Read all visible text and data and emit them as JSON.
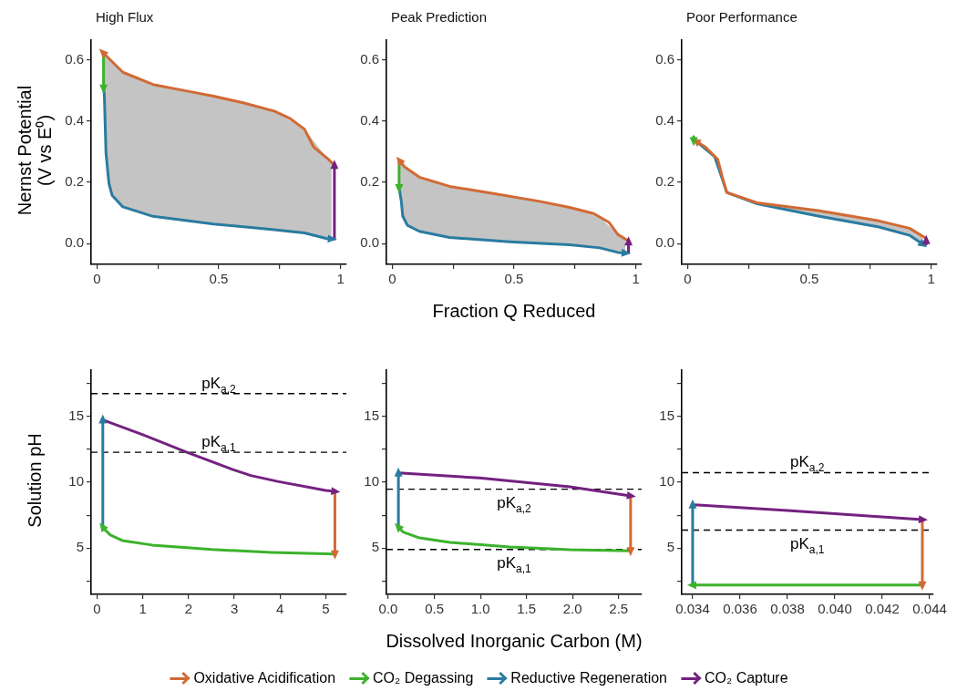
{
  "chart_data": [
    {
      "type": "line",
      "title": "High Flux",
      "ylabel": "Nernst Potential (V vs E⁰)",
      "xlim": [
        -0.024,
        1.024
      ],
      "ylim": [
        -0.068,
        0.665
      ],
      "xticks": [
        0,
        {
          "value": 0.25,
          "label": null
        },
        0.5,
        {
          "value": 0.75,
          "label": null
        },
        1
      ],
      "yticks": [
        {
          "value": 0,
          "label": "0.0"
        },
        0.2,
        0.4,
        0.6
      ],
      "series": [
        {
          "color": "#d16a34",
          "x": [
            0.975,
            0.951,
            0.89,
            0.852,
            0.79,
            0.728,
            0.6,
            0.479,
            0.36,
            0.23,
            0.106,
            0.025
          ],
          "values": [
            0.256,
            0.275,
            0.315,
            0.374,
            0.41,
            0.433,
            0.46,
            0.482,
            0.5,
            0.52,
            0.56,
            0.624
          ]
        },
        {
          "color": "#3cb22c",
          "x": [
            0.027,
            0.027
          ],
          "values": [
            0.624,
            0.508
          ]
        },
        {
          "color": "#2a7ba0",
          "x": [
            0.027,
            0.03,
            0.037,
            0.049,
            0.062,
            0.106,
            0.23,
            0.479,
            0.728,
            0.852,
            0.944,
            0.963
          ],
          "values": [
            0.508,
            0.49,
            0.295,
            0.197,
            0.158,
            0.12,
            0.089,
            0.064,
            0.045,
            0.035,
            0.016,
            0.015
          ],
          "lower": [
            0.508,
            0.49,
            0.295,
            0.197,
            0.158,
            0.12,
            0.089,
            0.064,
            0.045,
            0.035,
            0.016,
            0.015
          ],
          "upper": [
            0.622,
            0.62,
            0.615,
            0.605,
            0.595,
            0.56,
            0.52,
            0.482,
            0.433,
            0.374,
            0.28,
            0.266
          ]
        },
        {
          "color": "#73227f",
          "x": [
            0.975,
            0.975
          ],
          "values": [
            0.015,
            0.256
          ]
        }
      ]
    },
    {
      "type": "line",
      "title": "Peak Prediction",
      "xlabel": "Fraction Q Reduced",
      "xlim": [
        -0.024,
        1.024
      ],
      "ylim": [
        -0.068,
        0.665
      ],
      "xticks": [
        0,
        {
          "value": 0.25,
          "label": null
        },
        0.5,
        {
          "value": 0.75,
          "label": null
        },
        1
      ],
      "yticks": [
        {
          "value": 0,
          "label": "0.0"
        },
        0.2,
        0.4,
        0.6
      ],
      "series": [
        {
          "color": "#d16a34",
          "x": [
            0.975,
            0.926,
            0.889,
            0.827,
            0.728,
            0.605,
            0.42,
            0.235,
            0.111,
            0.05,
            0.031
          ],
          "values": [
            0.006,
            0.03,
            0.07,
            0.098,
            0.118,
            0.138,
            0.163,
            0.187,
            0.217,
            0.251,
            0.27
          ]
        },
        {
          "color": "#3cb22c",
          "x": [
            0.028,
            0.028
          ],
          "values": [
            0.27,
            0.182
          ]
        },
        {
          "color": "#2a7ba0",
          "x": [
            0.028,
            0.037,
            0.043,
            0.062,
            0.111,
            0.235,
            0.482,
            0.728,
            0.852,
            0.926,
            0.957
          ],
          "values": [
            0.182,
            0.138,
            0.089,
            0.06,
            0.04,
            0.02,
            0.006,
            -0.004,
            -0.014,
            -0.029,
            -0.031
          ],
          "lower": [
            0.182,
            0.138,
            0.089,
            0.06,
            0.04,
            0.02,
            0.006,
            -0.004,
            -0.014,
            -0.029,
            -0.031
          ],
          "upper": [
            0.27,
            0.264,
            0.258,
            0.245,
            0.217,
            0.187,
            0.155,
            0.118,
            0.086,
            0.03,
            0.015
          ]
        },
        {
          "color": "#73227f",
          "x": [
            0.97,
            0.97
          ],
          "values": [
            -0.031,
            0.006
          ]
        }
      ]
    },
    {
      "type": "line",
      "title": "Poor Performance",
      "xlim": [
        -0.024,
        1.024
      ],
      "ylim": [
        -0.068,
        0.665
      ],
      "xticks": [
        0,
        {
          "value": 0.25,
          "label": null
        },
        0.5,
        {
          "value": 0.75,
          "label": null
        },
        1
      ],
      "yticks": [
        {
          "value": 0,
          "label": "0.0"
        },
        0.2,
        0.4,
        0.6
      ],
      "series": [
        {
          "color": "#d16a34",
          "x": [
            0.98,
            0.974,
            0.911,
            0.786,
            0.536,
            0.286,
            0.161,
            0.143,
            0.124,
            0.074,
            0.036
          ],
          "values": [
            0.01,
            0.02,
            0.05,
            0.074,
            0.108,
            0.133,
            0.167,
            0.216,
            0.275,
            0.315,
            0.334
          ]
        },
        {
          "color": "#3cb22c",
          "x": [
            0.025,
            0.025
          ],
          "values": [
            0.35,
            0.336
          ]
        },
        {
          "color": "#2a7ba0",
          "x": [
            0.03,
            0.036,
            0.111,
            0.136,
            0.161,
            0.286,
            0.536,
            0.786,
            0.911,
            0.965
          ],
          "values": [
            0.336,
            0.334,
            0.284,
            0.226,
            0.167,
            0.13,
            0.09,
            0.054,
            0.027,
            -0.002
          ],
          "lower": [
            0.336,
            0.334,
            0.284,
            0.226,
            0.167,
            0.13,
            0.09,
            0.054,
            0.027,
            -0.002
          ],
          "upper": [
            0.336,
            0.334,
            0.285,
            0.24,
            0.167,
            0.133,
            0.108,
            0.074,
            0.05,
            0.022
          ]
        },
        {
          "color": "#73227f",
          "x": [
            0.98,
            0.98
          ],
          "values": [
            -0.002,
            0.01
          ]
        }
      ]
    },
    {
      "type": "line",
      "ylabel": "Solution pH",
      "xlim": [
        -0.13,
        5.45
      ],
      "ylim": [
        1.5,
        18.5
      ],
      "xticks": [
        0,
        1,
        2,
        3,
        4,
        5
      ],
      "yticks": [
        {
          "value": 2.5,
          "label": null
        },
        5,
        {
          "value": 7.5,
          "label": null
        },
        10,
        {
          "value": 12.5,
          "label": null
        },
        15,
        {
          "value": 17.5,
          "label": null
        }
      ],
      "ref_lines": [
        {
          "axis": "y",
          "value": 16.72,
          "label": "pK$_{a,2}$",
          "line_style": "dashed"
        },
        {
          "axis": "y",
          "value": 12.27,
          "label": "pK$_{a,1}$",
          "line_style": "dashed"
        }
      ],
      "series": [
        {
          "color": "#d16a34",
          "x": [
            5.2,
            5.2
          ],
          "values": [
            9.3,
            4.55
          ]
        },
        {
          "color": "#3cb22c",
          "x": [
            5.2,
            5.0,
            3.82,
            2.51,
            1.2,
            0.55,
            0.29,
            0.156,
            0.125
          ],
          "values": [
            4.55,
            4.57,
            4.68,
            4.9,
            5.24,
            5.58,
            6.0,
            6.45,
            6.6
          ]
        },
        {
          "color": "#2a7ba0",
          "x": [
            0.125,
            0.125
          ],
          "values": [
            6.6,
            14.73
          ]
        },
        {
          "color": "#73227f",
          "x": [
            0.125,
            1.0,
            1.95,
            2.97,
            3.36,
            3.95,
            5.0,
            5.2
          ],
          "values": [
            14.73,
            13.6,
            12.29,
            10.96,
            10.51,
            10.06,
            9.38,
            9.3
          ]
        }
      ]
    },
    {
      "type": "line",
      "xlabel": "Dissolved Inorganic Carbon (M)",
      "legend": "bottom",
      "xlim": [
        -0.02,
        2.75
      ],
      "ylim": [
        1.5,
        18.5
      ],
      "xticks": [
        {
          "value": 0,
          "label": "0.0"
        },
        0.5,
        {
          "value": 1,
          "label": "1.0"
        },
        1.5,
        {
          "value": 2,
          "label": "2.0"
        },
        2.5
      ],
      "yticks": [
        {
          "value": 2.5,
          "label": null
        },
        5,
        {
          "value": 7.5,
          "label": null
        },
        10,
        {
          "value": 12.5,
          "label": null
        },
        15,
        {
          "value": 17.5,
          "label": null
        }
      ],
      "ref_lines": [
        {
          "axis": "y",
          "value": 9.47,
          "label": "pK$_{a,2}$",
          "line_style": "dashed"
        },
        {
          "axis": "y",
          "value": 4.9,
          "label": "pK$_{a,1}$",
          "line_style": "dashed"
        }
      ],
      "series": [
        {
          "name": "Oxidative Acidification",
          "color": "#d16a34",
          "x": [
            2.63,
            2.63
          ],
          "values": [
            8.97,
            4.8
          ]
        },
        {
          "name": "CO₂ Degassing",
          "color": "#3cb22c",
          "x": [
            2.63,
            1.97,
            1.32,
            0.67,
            0.34,
            0.16,
            0.11
          ],
          "values": [
            4.8,
            4.88,
            5.1,
            5.44,
            5.78,
            6.23,
            6.6
          ]
        },
        {
          "name": "Reductive Regeneration",
          "color": "#2a7ba0",
          "x": [
            0.11,
            0.11
          ],
          "values": [
            6.6,
            10.7
          ]
        },
        {
          "name": "CO₂ Capture",
          "color": "#73227f",
          "x": [
            0.11,
            0.99,
            1.97,
            2.63
          ],
          "values": [
            10.7,
            10.33,
            9.65,
            8.97
          ]
        }
      ]
    },
    {
      "type": "line",
      "xlim": [
        0.03354,
        0.04413
      ],
      "ylim": [
        1.5,
        18.5
      ],
      "xticks": [
        0.034,
        0.036,
        0.038,
        {
          "value": 0.04,
          "label": "0.040"
        },
        0.042,
        0.044
      ],
      "yticks": [
        {
          "value": 2.5,
          "label": null
        },
        5,
        {
          "value": 7.5,
          "label": null
        },
        10,
        {
          "value": 12.5,
          "label": null
        },
        15,
        {
          "value": 17.5,
          "label": null
        }
      ],
      "ref_lines": [
        {
          "axis": "y",
          "value": 10.73,
          "label": "pK$_{a,2}$",
          "line_style": "dashed"
        },
        {
          "axis": "y",
          "value": 6.37,
          "label": "pK$_{a,1}$",
          "line_style": "dashed"
        }
      ],
      "series": [
        {
          "color": "#d16a34",
          "x": [
            0.04369,
            0.04369
          ],
          "values": [
            7.17,
            2.2
          ]
        },
        {
          "color": "#3cb22c",
          "x": [
            0.04369,
            0.034
          ],
          "values": [
            2.2,
            2.2
          ]
        },
        {
          "color": "#2a7ba0",
          "x": [
            0.034,
            0.034
          ],
          "values": [
            2.2,
            8.29
          ]
        },
        {
          "color": "#73227f",
          "x": [
            0.034,
            0.038,
            0.04369
          ],
          "values": [
            8.29,
            7.85,
            7.17
          ]
        }
      ]
    }
  ]
}
